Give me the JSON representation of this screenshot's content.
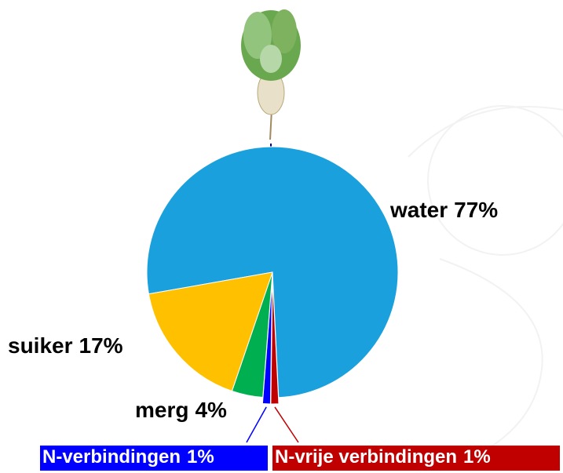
{
  "chart_data": {
    "type": "pie",
    "categories": [
      "water",
      "N-vrije verbindingen",
      "N-verbindingen",
      "merg",
      "suiker"
    ],
    "values": [
      77,
      1,
      1,
      4,
      17
    ],
    "value_labels": [
      "77%",
      "1%",
      "1%",
      "4%",
      "17%"
    ],
    "colors": [
      "#1aa0dd",
      "#c00000",
      "#0000ff",
      "#00b050",
      "#ffc000"
    ]
  }
}
